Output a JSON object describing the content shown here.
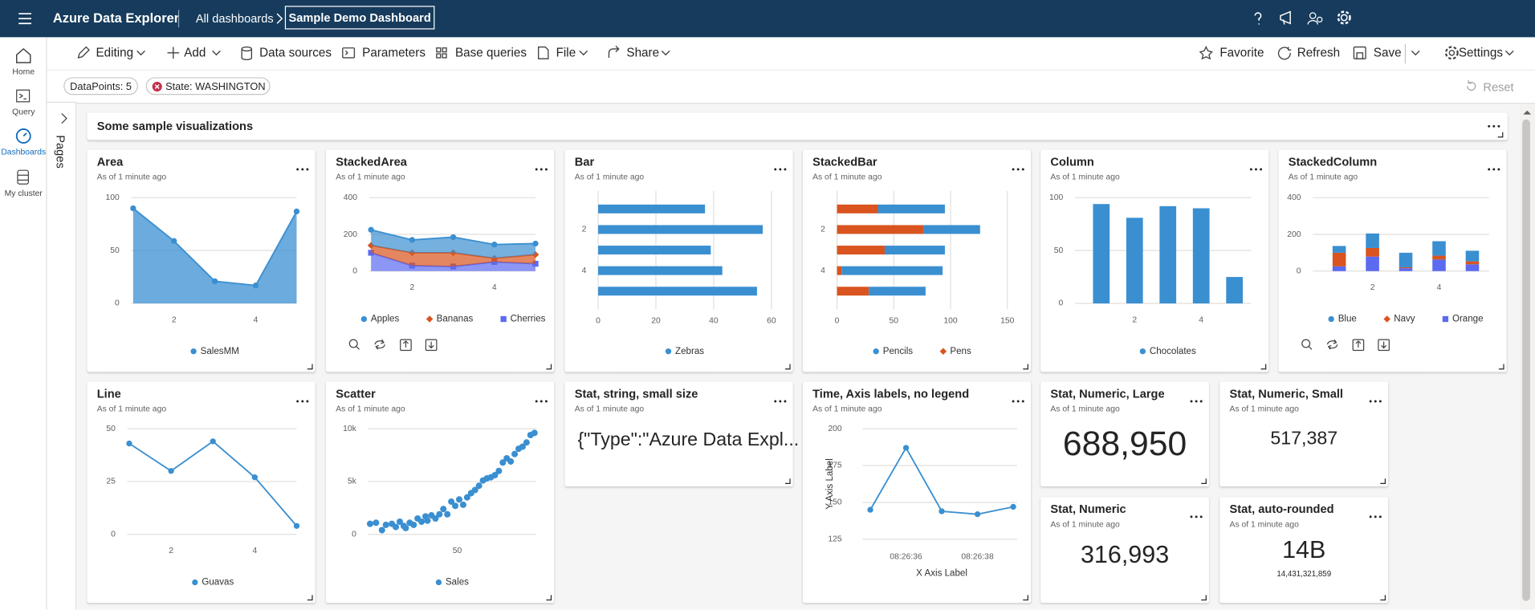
{
  "header": {
    "app": "Azure Data Explorer",
    "breadcrumb": "All dashboards",
    "dashboard": "Sample Demo Dashboard"
  },
  "nav": [
    "Home",
    "Query",
    "Dashboards",
    "My cluster"
  ],
  "toolbar": {
    "left": [
      "Editing",
      "Add",
      "Data sources",
      "Parameters",
      "Base queries",
      "File",
      "Share"
    ],
    "right": [
      "Favorite",
      "Refresh",
      "Save",
      "Settings"
    ]
  },
  "filters": [
    "DataPoints: 5",
    "State: WASHINGTON"
  ],
  "reset": "Reset",
  "pages": "Pages",
  "section": "Some sample visualizations",
  "chart_data": [
    {
      "type": "area",
      "title": "Area",
      "subtitle": "As of 1 minute ago",
      "x": [
        1,
        2,
        3,
        4,
        5
      ],
      "xlim": [
        1,
        5
      ],
      "xticks": [
        2,
        4
      ],
      "ylim": [
        0,
        100
      ],
      "yticks": [
        0,
        50,
        100
      ],
      "series": [
        {
          "name": "SalesMM",
          "color": "#3a8fd1",
          "values": [
            90,
            59,
            21,
            17,
            87
          ]
        }
      ]
    },
    {
      "type": "stackedarea",
      "title": "StackedArea",
      "subtitle": "As of 1 minute ago",
      "x": [
        1,
        2,
        3,
        4,
        5
      ],
      "xlim": [
        1,
        5
      ],
      "xticks": [
        2,
        4
      ],
      "ylim": [
        0,
        400
      ],
      "yticks": [
        0,
        200,
        400
      ],
      "series": [
        {
          "name": "Apples",
          "color": "#3a8fd1",
          "values": [
            85,
            70,
            85,
            75,
            60
          ]
        },
        {
          "name": "Bananas",
          "color": "#d9541e",
          "values": [
            40,
            70,
            75,
            20,
            50
          ]
        },
        {
          "name": "Cherries",
          "color": "#5b6af0",
          "values": [
            100,
            30,
            25,
            50,
            40
          ]
        }
      ]
    },
    {
      "type": "barh",
      "title": "Bar",
      "subtitle": "As of 1 minute ago",
      "categories": [
        null,
        "2",
        null,
        "4",
        null
      ],
      "xlim": [
        0,
        60
      ],
      "xticks": [
        0,
        20,
        40,
        60
      ],
      "series": [
        {
          "name": "Zebras",
          "color": "#3a8fd1",
          "values": [
            37,
            57,
            39,
            43,
            55
          ]
        }
      ]
    },
    {
      "type": "stackedbarh",
      "title": "StackedBar",
      "subtitle": "As of 1 minute ago",
      "categories": [
        null,
        "2",
        null,
        "4",
        null
      ],
      "xlim": [
        0,
        150
      ],
      "xticks": [
        0,
        50,
        100,
        150
      ],
      "series": [
        {
          "name": "Pencils",
          "color": "#3a8fd1",
          "values": [
            59,
            50,
            53,
            89,
            50
          ]
        },
        {
          "name": "Pens",
          "color": "#d9541e",
          "values": [
            36,
            76,
            42,
            4,
            28
          ]
        }
      ]
    },
    {
      "type": "column",
      "title": "Column",
      "subtitle": "As of 1 minute ago",
      "categories": [
        null,
        "2",
        null,
        "4",
        null
      ],
      "ylim": [
        0,
        100
      ],
      "yticks": [
        0,
        50,
        100
      ],
      "series": [
        {
          "name": "Chocolates",
          "color": "#3a8fd1",
          "values": [
            94,
            81,
            92,
            90,
            25
          ]
        }
      ]
    },
    {
      "type": "stackedcolumn",
      "title": "StackedColumn",
      "subtitle": "As of 1 minute ago",
      "categories": [
        null,
        "2",
        null,
        "4",
        null
      ],
      "ylim": [
        0,
        400
      ],
      "yticks": [
        0,
        200,
        400
      ],
      "series": [
        {
          "name": "Blue",
          "color": "#3a8fd1",
          "values": [
            37,
            79,
            79,
            79,
            58
          ]
        },
        {
          "name": "Navy",
          "color": "#d9541e",
          "values": [
            74,
            47,
            5,
            21,
            16
          ]
        },
        {
          "name": "Orange",
          "color": "#5b6af0",
          "values": [
            26,
            79,
            16,
            63,
            37
          ]
        }
      ]
    },
    {
      "type": "line",
      "title": "Line",
      "subtitle": "As of 1 minute ago",
      "x": [
        1,
        2,
        3,
        4,
        5
      ],
      "xlim": [
        1,
        5
      ],
      "xticks": [
        2,
        4
      ],
      "ylim": [
        0,
        50
      ],
      "yticks": [
        0,
        25,
        50
      ],
      "series": [
        {
          "name": "Guavas",
          "color": "#3a8fd1",
          "values": [
            43,
            30,
            44,
            27,
            4
          ]
        }
      ]
    },
    {
      "type": "scatter",
      "title": "Scatter",
      "subtitle": "As of 1 minute ago",
      "xlim": [
        5,
        90
      ],
      "xticks": [
        50
      ],
      "ylim": [
        0,
        10000
      ],
      "yticks": [
        0,
        {
          "value": 5000,
          "label": "5k"
        },
        {
          "value": 10000,
          "label": "10k"
        }
      ],
      "series": [
        {
          "name": "Sales",
          "color": "#3a8fd1",
          "x": [
            6,
            9,
            12,
            14,
            17,
            19,
            21,
            23,
            24,
            26,
            28,
            30,
            32,
            34,
            35,
            37,
            39,
            41,
            43,
            45,
            47,
            49,
            51,
            53,
            55,
            57,
            59,
            61,
            63,
            65,
            67,
            69,
            71,
            73,
            75,
            77,
            79,
            81,
            83,
            85,
            87,
            89
          ],
          "values": [
            1000,
            1100,
            400,
            900,
            1000,
            700,
            1200,
            800,
            600,
            1100,
            900,
            1500,
            1200,
            1700,
            1300,
            1800,
            1500,
            1900,
            2400,
            1900,
            3100,
            2700,
            3300,
            2800,
            3500,
            3900,
            4200,
            4600,
            5100,
            5300,
            5400,
            5600,
            6000,
            6800,
            7200,
            6900,
            7600,
            8100,
            8300,
            8700,
            9400,
            9600
          ]
        }
      ]
    },
    {
      "type": "timeline",
      "title": "Time, Axis labels, no legend",
      "subtitle": "As of 1 minute ago",
      "x": [
        "08:26:35",
        "08:26:36",
        "08:26:37",
        "08:26:38",
        "08:26:39"
      ],
      "xlim": [
        "08:26:35",
        "08:26:39"
      ],
      "xticks": [
        "08:26:36",
        "08:26:38"
      ],
      "ylim": [
        125,
        200
      ],
      "yticks": [
        125,
        150,
        175,
        200
      ],
      "xlabel": "X Axis Label",
      "ylabel": "Y Axis Label",
      "color": "#3a8fd1",
      "values": [
        145,
        187,
        144,
        142,
        147
      ]
    }
  ],
  "stats": [
    {
      "title": "Stat, string, small size",
      "subtitle": "As of 1 minute ago",
      "value": "{\"Type\":\"Azure Data Expl..."
    },
    {
      "title": "Stat, Numeric, Large",
      "subtitle": "As of 1 minute ago",
      "value": "688,950"
    },
    {
      "title": "Stat, Numeric, Small",
      "subtitle": "As of 1 minute ago",
      "value": "517,387"
    },
    {
      "title": "Stat, Numeric",
      "subtitle": "As of 1 minute ago",
      "value": "316,993"
    },
    {
      "title": "Stat, auto-rounded",
      "subtitle": "As of 1 minute ago",
      "value": "14B",
      "detail": "14,431,321,859"
    }
  ]
}
